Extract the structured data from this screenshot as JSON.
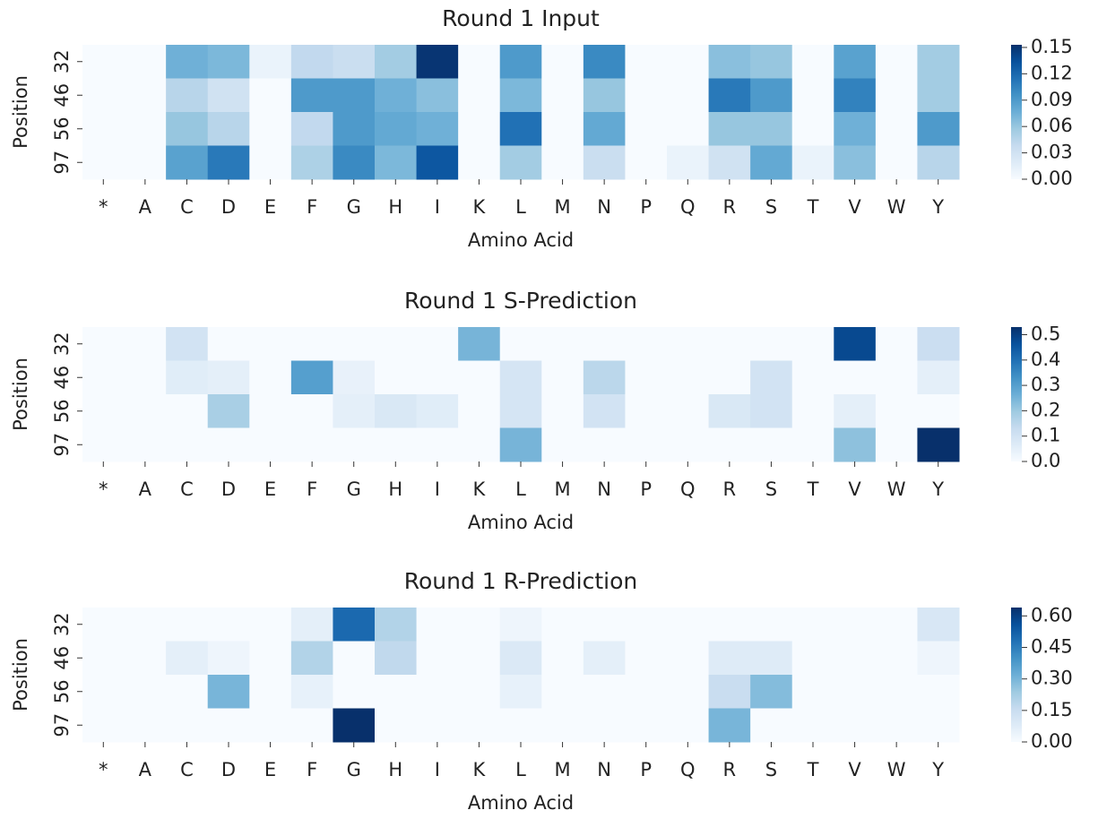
{
  "chart_data": [
    {
      "type": "heatmap",
      "title": "Round 1 Input",
      "xlabel": "Amino Acid",
      "ylabel": "Position",
      "categories": [
        "*",
        "A",
        "C",
        "D",
        "E",
        "F",
        "G",
        "H",
        "I",
        "K",
        "L",
        "M",
        "N",
        "P",
        "Q",
        "R",
        "S",
        "T",
        "V",
        "W",
        "Y"
      ],
      "rows": [
        "32",
        "46",
        "56",
        "97"
      ],
      "values": [
        [
          0,
          0,
          0.075,
          0.07,
          0.01,
          0.04,
          0.035,
          0.055,
          0.15,
          0,
          0.09,
          0,
          0.1,
          0,
          0,
          0.065,
          0.06,
          0,
          0.085,
          0,
          0.055
        ],
        [
          0,
          0,
          0.045,
          0.03,
          0,
          0.09,
          0.09,
          0.075,
          0.065,
          0,
          0.07,
          0,
          0.06,
          0,
          0,
          0.11,
          0.09,
          0,
          0.105,
          0,
          0.055
        ],
        [
          0,
          0,
          0.06,
          0.045,
          0,
          0.04,
          0.09,
          0.08,
          0.075,
          0,
          0.115,
          0,
          0.08,
          0,
          0,
          0.06,
          0.06,
          0,
          0.075,
          0,
          0.09
        ],
        [
          0,
          0,
          0.085,
          0.11,
          0,
          0.05,
          0.1,
          0.07,
          0.13,
          0,
          0.055,
          0,
          0.035,
          0,
          0.01,
          0.03,
          0.08,
          0.01,
          0.065,
          0,
          0.045
        ]
      ],
      "clim": [
        0,
        0.153
      ],
      "cticks": [
        {
          "value": 0,
          "label": "0.00"
        },
        {
          "value": 0.03,
          "label": "0.03"
        },
        {
          "value": 0.06,
          "label": "0.06"
        },
        {
          "value": 0.09,
          "label": "0.09"
        },
        {
          "value": 0.12,
          "label": "0.12"
        },
        {
          "value": 0.15,
          "label": "0.15"
        }
      ],
      "colormap": [
        "#f7fbff",
        "#deebf7",
        "#c6dbef",
        "#9ecae1",
        "#6baed6",
        "#4292c6",
        "#2171b5",
        "#08519c",
        "#08306b"
      ]
    },
    {
      "type": "heatmap",
      "title": "Round 1 S-Prediction",
      "xlabel": "Amino Acid",
      "ylabel": "Position",
      "categories": [
        "*",
        "A",
        "C",
        "D",
        "E",
        "F",
        "G",
        "H",
        "I",
        "K",
        "L",
        "M",
        "N",
        "P",
        "Q",
        "R",
        "S",
        "T",
        "V",
        "W",
        "Y"
      ],
      "rows": [
        "32",
        "46",
        "56",
        "97"
      ],
      "values": [
        [
          0,
          0,
          0.1,
          0,
          0,
          0,
          0,
          0,
          0,
          0.25,
          0,
          0,
          0,
          0,
          0,
          0,
          0,
          0,
          0.48,
          0,
          0.12
        ],
        [
          0,
          0,
          0.06,
          0.05,
          0,
          0.3,
          0.04,
          0,
          0,
          0,
          0.09,
          0,
          0.15,
          0,
          0,
          0,
          0.1,
          0,
          0,
          0,
          0.05
        ],
        [
          0,
          0,
          0,
          0.18,
          0,
          0,
          0.05,
          0.08,
          0.06,
          0,
          0.09,
          0,
          0.1,
          0,
          0,
          0.08,
          0.1,
          0,
          0.05,
          0,
          0
        ],
        [
          0,
          0,
          0,
          0,
          0,
          0,
          0,
          0,
          0,
          0,
          0.25,
          0,
          0,
          0,
          0,
          0,
          0,
          0,
          0.22,
          0,
          0.53
        ]
      ],
      "clim": [
        0,
        0.53
      ],
      "cticks": [
        {
          "value": 0,
          "label": "0.0"
        },
        {
          "value": 0.1,
          "label": "0.1"
        },
        {
          "value": 0.2,
          "label": "0.2"
        },
        {
          "value": 0.3,
          "label": "0.3"
        },
        {
          "value": 0.4,
          "label": "0.4"
        },
        {
          "value": 0.5,
          "label": "0.5"
        }
      ],
      "colormap": [
        "#f7fbff",
        "#deebf7",
        "#c6dbef",
        "#9ecae1",
        "#6baed6",
        "#4292c6",
        "#2171b5",
        "#08519c",
        "#08306b"
      ]
    },
    {
      "type": "heatmap",
      "title": "Round 1 R-Prediction",
      "xlabel": "Amino Acid",
      "ylabel": "Position",
      "categories": [
        "*",
        "A",
        "C",
        "D",
        "E",
        "F",
        "G",
        "H",
        "I",
        "K",
        "L",
        "M",
        "N",
        "P",
        "Q",
        "R",
        "S",
        "T",
        "V",
        "W",
        "Y"
      ],
      "rows": [
        "32",
        "46",
        "56",
        "97"
      ],
      "values": [
        [
          0,
          0,
          0,
          0,
          0,
          0.06,
          0.5,
          0.2,
          0,
          0,
          0.03,
          0,
          0,
          0,
          0,
          0,
          0,
          0,
          0,
          0,
          0.1
        ],
        [
          0,
          0,
          0.06,
          0.03,
          0,
          0.2,
          0,
          0.17,
          0,
          0,
          0.09,
          0,
          0.06,
          0,
          0,
          0.08,
          0.08,
          0,
          0,
          0,
          0.03
        ],
        [
          0,
          0,
          0,
          0.3,
          0,
          0.05,
          0,
          0,
          0,
          0,
          0.05,
          0,
          0,
          0,
          0,
          0.15,
          0.28,
          0,
          0,
          0,
          0
        ],
        [
          0,
          0,
          0,
          0,
          0,
          0,
          0.64,
          0,
          0,
          0,
          0,
          0,
          0,
          0,
          0,
          0.3,
          0,
          0,
          0,
          0,
          0
        ]
      ],
      "clim": [
        0,
        0.64
      ],
      "cticks": [
        {
          "value": 0,
          "label": "0.00"
        },
        {
          "value": 0.15,
          "label": "0.15"
        },
        {
          "value": 0.3,
          "label": "0.30"
        },
        {
          "value": 0.45,
          "label": "0.45"
        },
        {
          "value": 0.6,
          "label": "0.60"
        }
      ],
      "colormap": [
        "#f7fbff",
        "#deebf7",
        "#c6dbef",
        "#9ecae1",
        "#6baed6",
        "#4292c6",
        "#2171b5",
        "#08519c",
        "#08306b"
      ]
    }
  ]
}
